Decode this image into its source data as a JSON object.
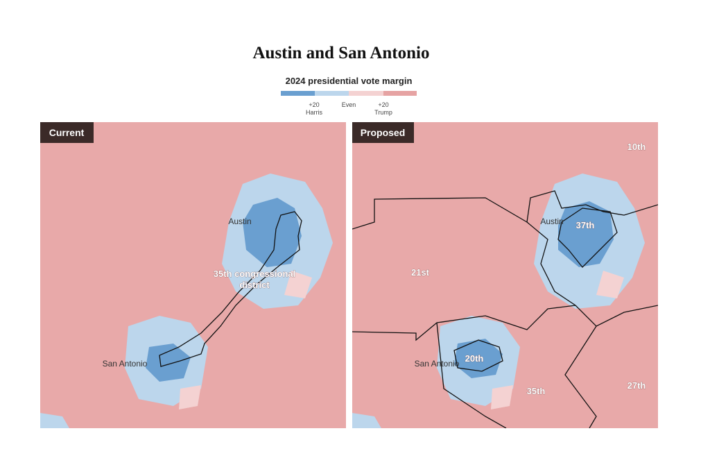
{
  "header": {
    "title": "Austin and San Antonio",
    "subtitle": "2024 presidential vote margin"
  },
  "legend": {
    "labels": [
      {
        "lines": [
          "+20",
          "Harris"
        ]
      },
      {
        "lines": [
          "Even"
        ]
      },
      {
        "lines": [
          "+20",
          "Trump"
        ]
      }
    ]
  },
  "panels": [
    {
      "tag": "Current",
      "places": [
        "Austin",
        "San Antonio"
      ],
      "districts": [
        {
          "lines": [
            "35th congressional",
            "district"
          ]
        }
      ]
    },
    {
      "tag": "Proposed",
      "places": [
        "Austin",
        "San Antonio"
      ],
      "districts": [
        {
          "lines": [
            "10th"
          ]
        },
        {
          "lines": [
            "21st"
          ]
        },
        {
          "lines": [
            "37th"
          ]
        },
        {
          "lines": [
            "20th"
          ]
        },
        {
          "lines": [
            "35th"
          ]
        },
        {
          "lines": [
            "27th"
          ]
        }
      ]
    }
  ]
}
